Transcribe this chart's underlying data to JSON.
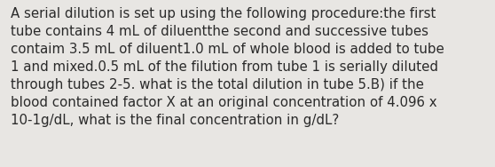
{
  "text": "A serial dilution is set up using the following procedure:the first\ntube contains 4 mL of diluentthe second and successive tubes\ncontaim 3.5 mL of diluent1.0 mL of whole blood is added to tube\n1 and mixed.0.5 mL of the filution from tube 1 is serially diluted\nthrough tubes 2-5. what is the total dilution in tube 5.B) if the\nblood contained factor X at an original concentration of 4.096 x\n10-1g/dL, what is the final concentration in g/dL?",
  "background_color": "#e8e6e3",
  "text_color": "#2a2a2a",
  "font_size": 10.8,
  "fig_width": 5.58,
  "fig_height": 1.88,
  "dpi": 100
}
